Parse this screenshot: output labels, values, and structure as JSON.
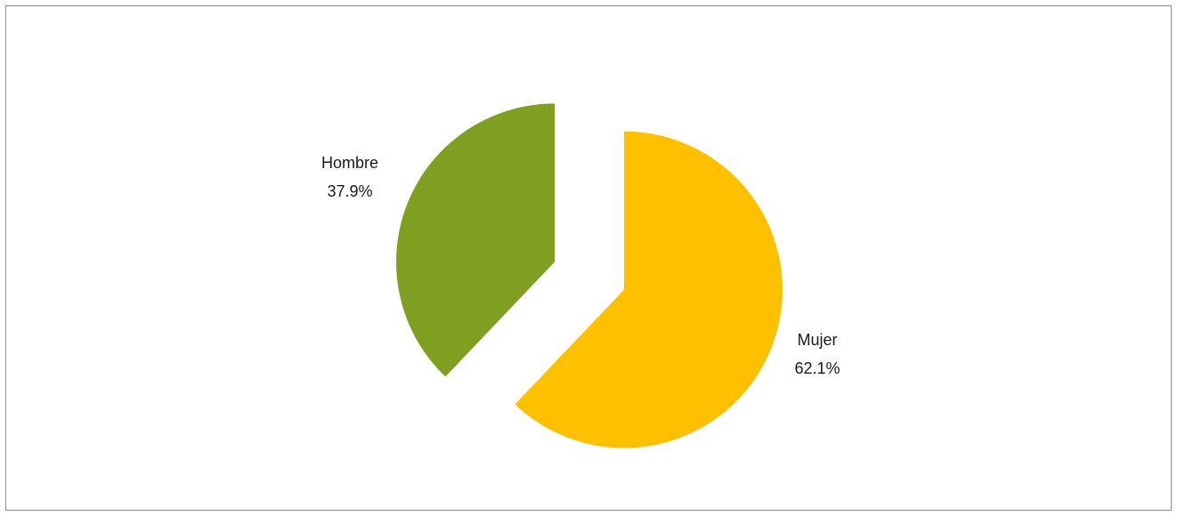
{
  "chart_data": {
    "type": "pie",
    "exploded": true,
    "start_angle_deg": 0,
    "direction": "clockwise",
    "slices": [
      {
        "label": "Mujer",
        "value": 62.1,
        "display": "62.1%",
        "color": "#FFC000"
      },
      {
        "label": "Hombre",
        "value": 37.9,
        "display": "37.9%",
        "color": "#7E9F20"
      }
    ],
    "legend": "none",
    "title": ""
  }
}
